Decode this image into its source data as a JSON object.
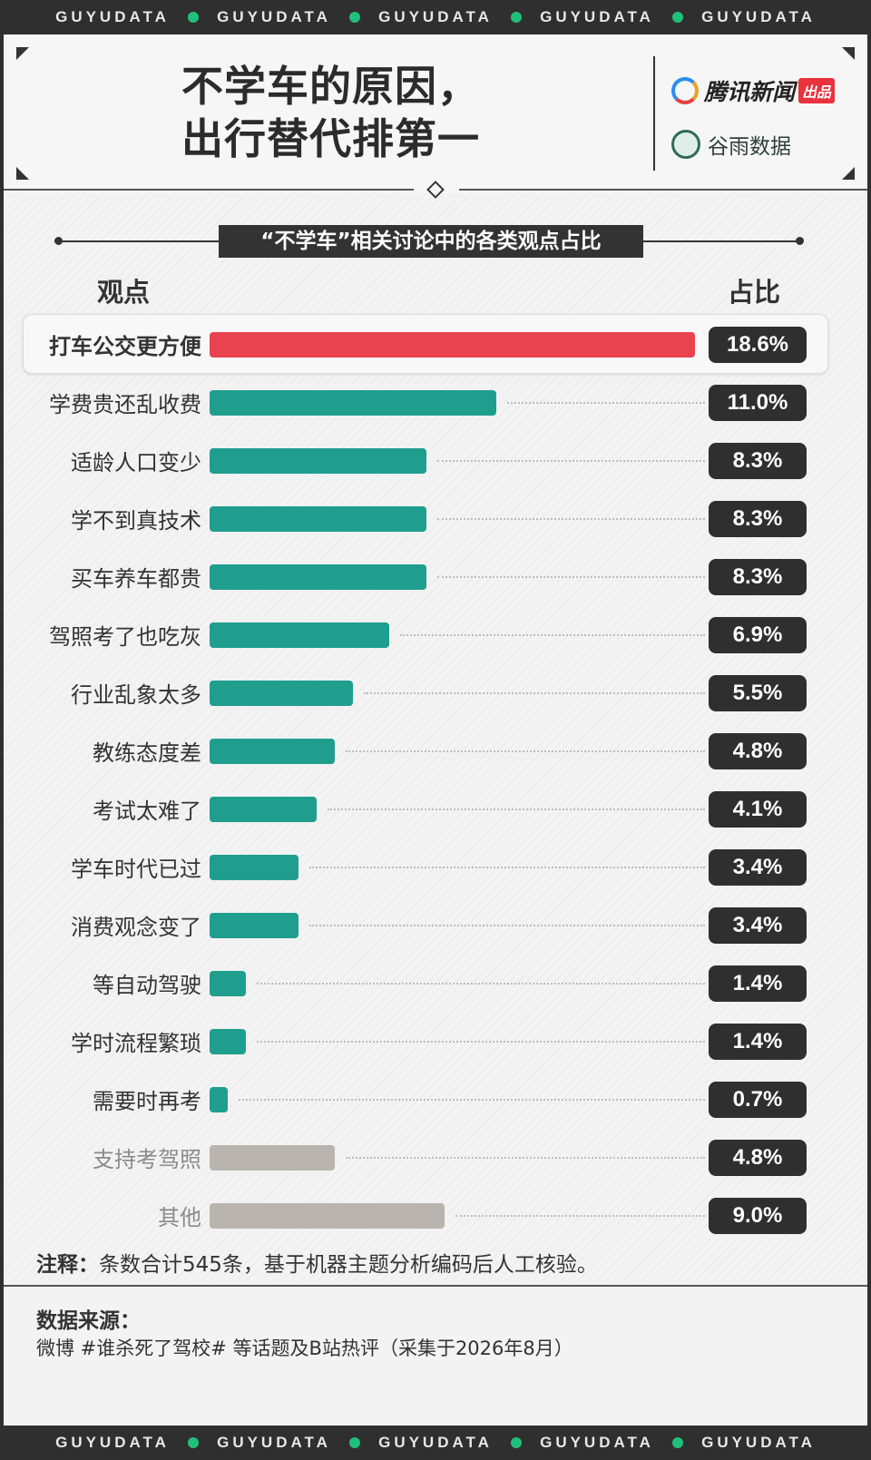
{
  "strip": {
    "word": "GUYUDATA",
    "accent": "#21c07a"
  },
  "header": {
    "title_line1": "不学车的原因，",
    "title_line2": "出行替代排第一",
    "brand_tencent": "腾讯新闻",
    "brand_tencent_tag": "出品",
    "brand_guyu": "谷雨数据"
  },
  "chart_data": {
    "type": "bar",
    "orientation": "horizontal",
    "title": "“不学车”相关讨论中的各类观点占比",
    "category_header": "观点",
    "value_header": "占比",
    "categories": [
      "打车公交更方便",
      "学费贵还乱收费",
      "适龄人口变少",
      "学不到真技术",
      "买车养车都贵",
      "驾照考了也吃灰",
      "行业乱象太多",
      "教练态度差",
      "考试太难了",
      "学车时代已过",
      "消费观念变了",
      "等自动驾驶",
      "学时流程繁琐",
      "需要时再考",
      "支持考驾照",
      "其他"
    ],
    "values": [
      18.6,
      11.0,
      8.3,
      8.3,
      8.3,
      6.9,
      5.5,
      4.8,
      4.1,
      3.4,
      3.4,
      1.4,
      1.4,
      0.7,
      4.8,
      9.0
    ],
    "value_labels": [
      "18.6%",
      "11.0%",
      "8.3%",
      "8.3%",
      "8.3%",
      "6.9%",
      "5.5%",
      "4.8%",
      "4.1%",
      "3.4%",
      "3.4%",
      "1.4%",
      "1.4%",
      "0.7%",
      "4.8%",
      "9.0%"
    ],
    "groups": [
      "highlight",
      "against",
      "against",
      "against",
      "against",
      "against",
      "against",
      "against",
      "against",
      "against",
      "against",
      "against",
      "against",
      "against",
      "other",
      "other"
    ],
    "colors": {
      "highlight": "#e8434f",
      "against": "#1f9e8e",
      "other": "#b9b5ae"
    },
    "xlim": [
      0,
      18.6
    ]
  },
  "note": {
    "label": "注释：",
    "text": "条数合计545条，基于机器主题分析编码后人工核验。"
  },
  "source": {
    "label": "数据来源：",
    "text": "微博 #谁杀死了驾校# 等话题及B站热评（采集于2026年8月）"
  }
}
